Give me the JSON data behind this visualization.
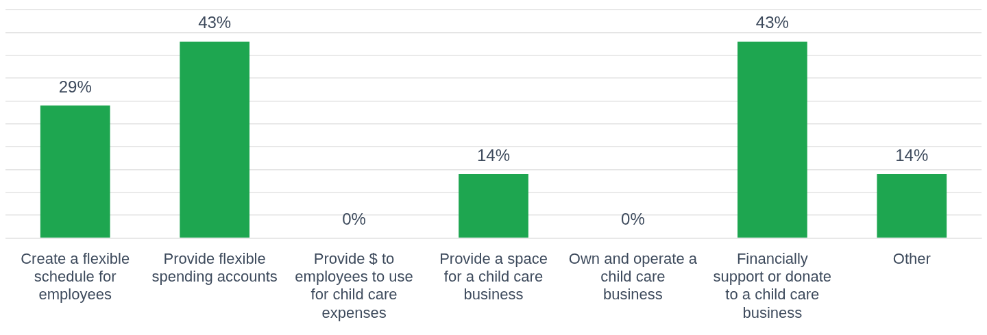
{
  "chart_data": {
    "type": "bar",
    "categories": [
      "Create a flexible schedule for employees",
      "Provide flexible spending accounts",
      "Provide $ to employees to use for child care expenses",
      "Provide a space for a child care business",
      "Own and operate a child care business",
      "Financially support or donate to a child care business",
      "Other"
    ],
    "values": [
      29,
      43,
      0,
      14,
      0,
      43,
      14
    ],
    "value_labels": [
      "29%",
      "43%",
      "0%",
      "14%",
      "0%",
      "43%",
      "14%"
    ],
    "color": "#1ea650",
    "ylim": [
      0,
      50
    ],
    "yticks": [
      {
        "value": 0,
        "label": null
      },
      {
        "value": 5,
        "label": null
      },
      {
        "value": 10,
        "label": null
      },
      {
        "value": 15,
        "label": null
      },
      {
        "value": 20,
        "label": null
      },
      {
        "value": 25,
        "label": null
      },
      {
        "value": 30,
        "label": null
      },
      {
        "value": 35,
        "label": null
      },
      {
        "value": 40,
        "label": null
      },
      {
        "value": 45,
        "label": null
      },
      {
        "value": 50,
        "label": null
      }
    ],
    "grid": "y",
    "tick_labels": "x"
  }
}
